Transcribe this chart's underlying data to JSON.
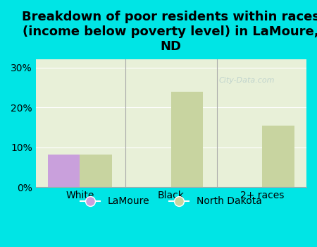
{
  "title": "Breakdown of poor residents within races\n(income below poverty level) in LaMoure,\nND",
  "categories": [
    "White",
    "Black",
    "2+ races"
  ],
  "lamoure_values": [
    8.2,
    0,
    0
  ],
  "nd_values": [
    8.2,
    24.0,
    15.5
  ],
  "lamoure_color": "#c9a0dc",
  "nd_color": "#c8d4a0",
  "background_color": "#00e5e5",
  "plot_bg_color": "#e8f0d8",
  "ylim": [
    0,
    32
  ],
  "yticks": [
    0,
    10,
    20,
    30
  ],
  "ytick_labels": [
    "0%",
    "10%",
    "20%",
    "30%"
  ],
  "bar_width": 0.35,
  "title_fontsize": 13,
  "watermark": "City-Data.com"
}
